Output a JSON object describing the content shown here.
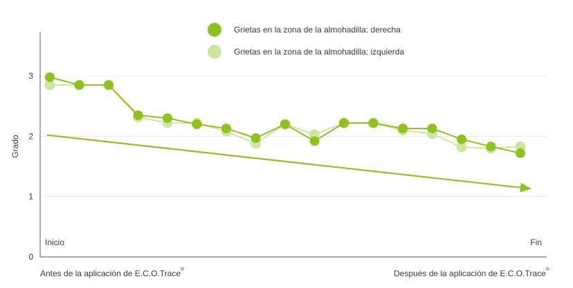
{
  "chart_data": {
    "type": "line",
    "ylabel": "Grado",
    "yticks": [
      "0",
      "1",
      "2",
      "3"
    ],
    "ylim": [
      0,
      3.6
    ],
    "grid": true,
    "legend_position": "top-center",
    "x_start_label": "Inicio",
    "x_end_label": "Fin",
    "x_bottom_left_label": "Antes de la aplicación de E.C.O.Trace",
    "x_bottom_right_label": "Después de la aplicación de E.C.O.Trace",
    "registered_mark": "®",
    "series": [
      {
        "name": "Grietas en la zona de la almohadilla: derecha",
        "color": "#8dc21f",
        "values": [
          2.98,
          2.85,
          2.85,
          2.35,
          2.3,
          2.2,
          2.13,
          1.97,
          2.2,
          1.92,
          2.22,
          2.22,
          2.13,
          2.13,
          1.95,
          1.83,
          1.72
        ]
      },
      {
        "name": "Grietas en la zona de la almohadilla: izquierda",
        "color": "#cfe6a0",
        "values": [
          2.85,
          2.85,
          2.85,
          2.32,
          2.22,
          2.22,
          2.08,
          1.88,
          2.2,
          2.03,
          2.22,
          2.22,
          2.1,
          2.04,
          1.82,
          1.8,
          1.83
        ]
      }
    ],
    "trend": {
      "from": 2.02,
      "to": 1.15,
      "color": "#8dc21f"
    }
  }
}
